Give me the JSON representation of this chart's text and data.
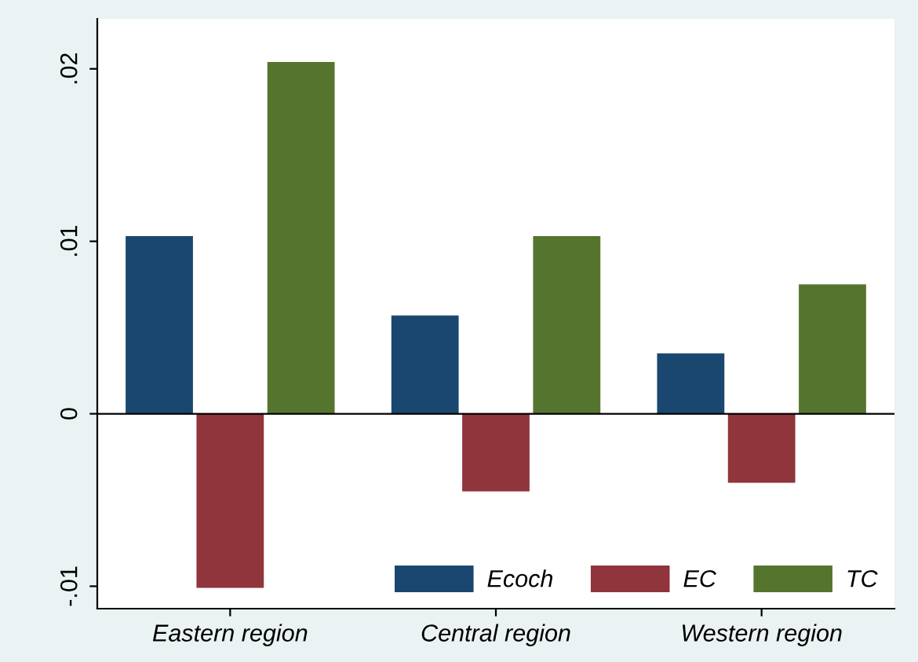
{
  "chart_data": {
    "type": "bar",
    "categories": [
      "Eastern region",
      "Central region",
      "Western region"
    ],
    "series": [
      {
        "name": "Ecoch",
        "color": "#1a476f",
        "values": [
          0.0103,
          0.0057,
          0.0035
        ]
      },
      {
        "name": "EC",
        "color": "#90353b",
        "values": [
          -0.0101,
          -0.0045,
          -0.004
        ]
      },
      {
        "name": "TC",
        "color": "#55752f",
        "values": [
          0.0204,
          0.0103,
          0.0075
        ]
      }
    ],
    "ylim": [
      -0.0113,
      0.0229
    ],
    "yticks": [
      {
        "value": -0.01,
        "label": "-.01"
      },
      {
        "value": 0,
        "label": "0"
      },
      {
        "value": 0.01,
        "label": ".01"
      },
      {
        "value": 0.02,
        "label": ".02"
      }
    ],
    "ref_lines": [
      {
        "axis": "y",
        "value": 0,
        "color": "#000000"
      }
    ],
    "grid": false,
    "legend": "bottom right"
  }
}
